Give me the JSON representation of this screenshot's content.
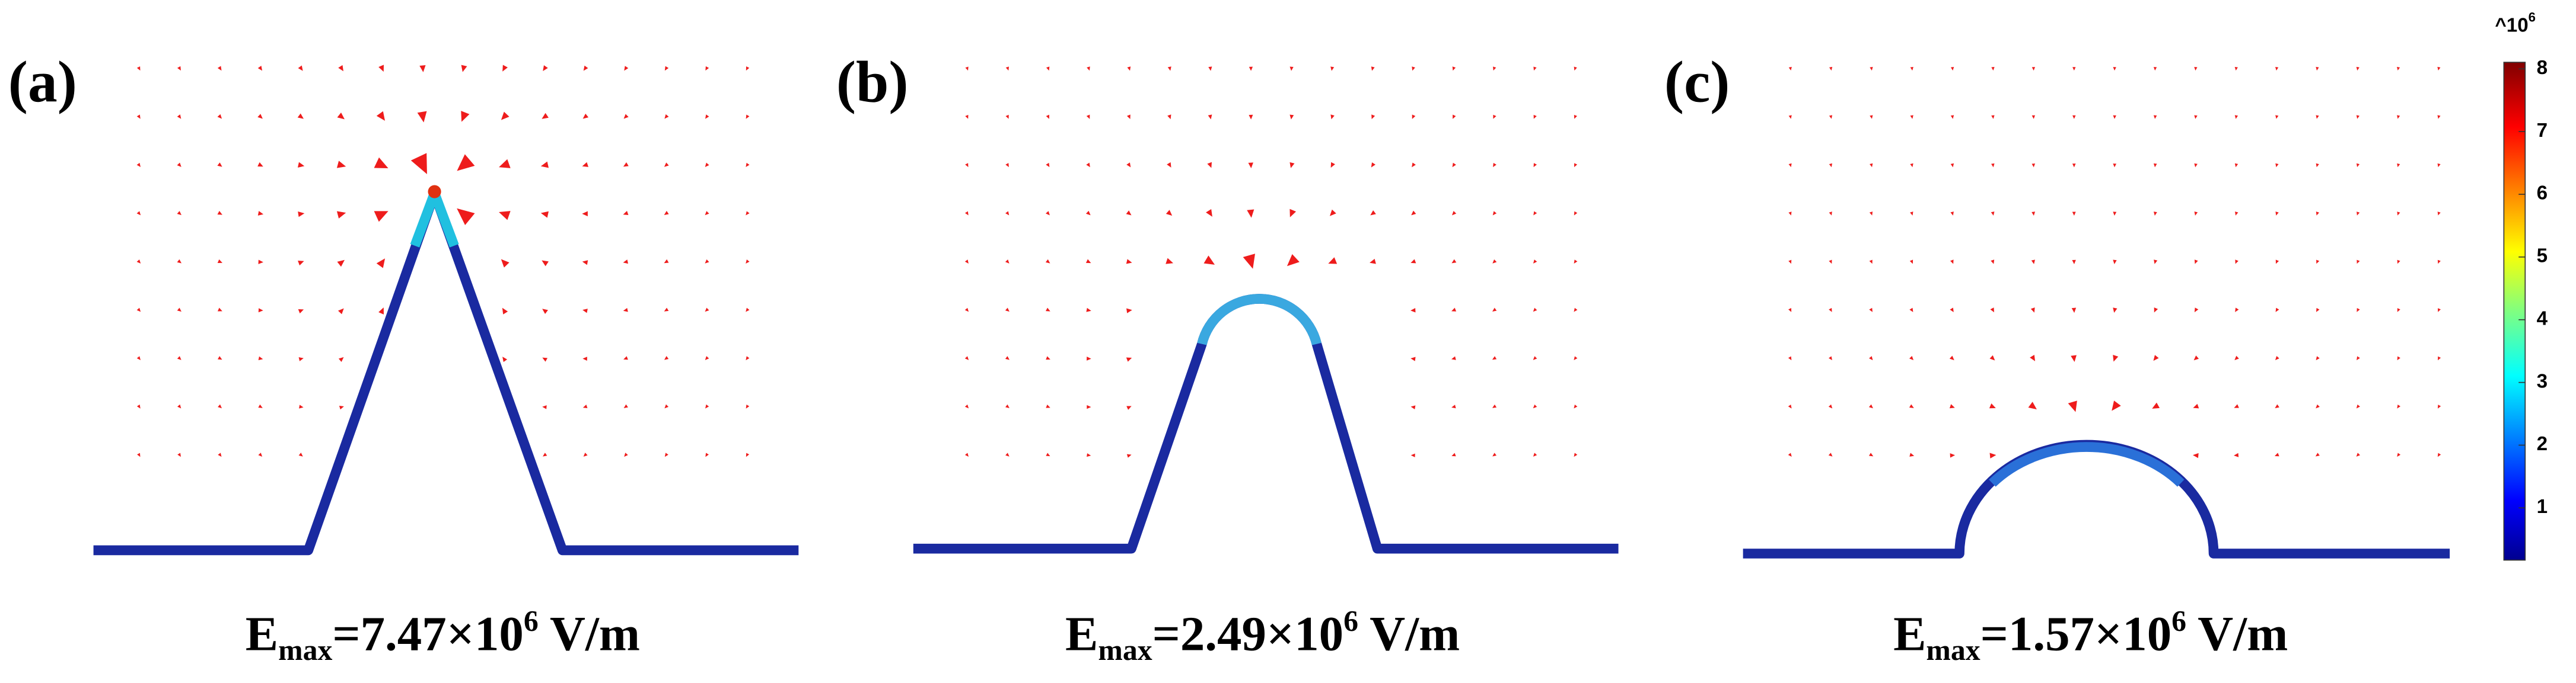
{
  "panels": [
    {
      "label": "(a)",
      "emax": {
        "symbol": "E",
        "subscript": "max",
        "text": "=7.47×10",
        "superscript": "6",
        "unit": " V/m"
      }
    },
    {
      "label": "(b)",
      "emax": {
        "symbol": "E",
        "subscript": "max",
        "text": "=2.49×10",
        "superscript": "6",
        "unit": " V/m"
      }
    },
    {
      "label": "(c)",
      "emax": {
        "symbol": "E",
        "subscript": "max",
        "text": "=1.57×10",
        "superscript": "6",
        "unit": " V/m"
      }
    }
  ],
  "colorbar": {
    "exponent_label": "^10",
    "exponent": "6",
    "ticks": [
      1,
      2,
      3,
      4,
      5,
      6,
      7,
      8
    ]
  }
}
